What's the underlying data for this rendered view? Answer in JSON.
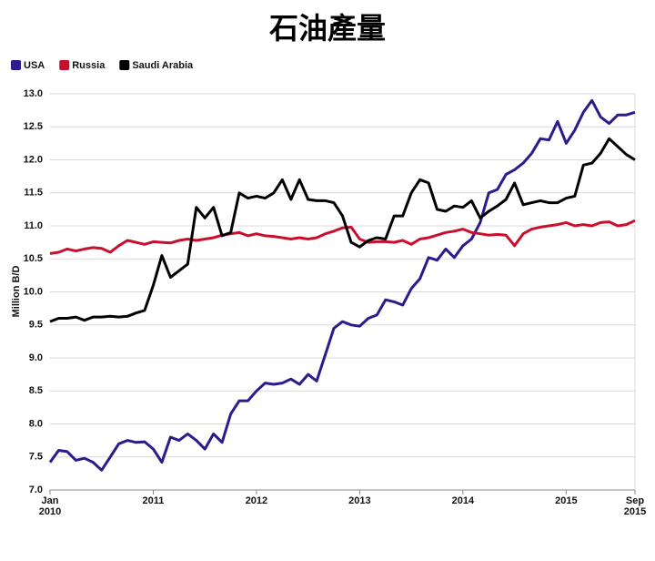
{
  "title": "石油產量",
  "chart_data": {
    "type": "line",
    "y_label": "Million B/D",
    "x": [
      "2010-01",
      "2010-02",
      "2010-03",
      "2010-04",
      "2010-05",
      "2010-06",
      "2010-07",
      "2010-08",
      "2010-09",
      "2010-10",
      "2010-11",
      "2010-12",
      "2011-01",
      "2011-02",
      "2011-03",
      "2011-04",
      "2011-05",
      "2011-06",
      "2011-07",
      "2011-08",
      "2011-09",
      "2011-10",
      "2011-11",
      "2011-12",
      "2012-01",
      "2012-02",
      "2012-03",
      "2012-04",
      "2012-05",
      "2012-06",
      "2012-07",
      "2012-08",
      "2012-09",
      "2012-10",
      "2012-11",
      "2012-12",
      "2013-01",
      "2013-02",
      "2013-03",
      "2013-04",
      "2013-05",
      "2013-06",
      "2013-07",
      "2013-08",
      "2013-09",
      "2013-10",
      "2013-11",
      "2013-12",
      "2014-01",
      "2014-02",
      "2014-03",
      "2014-04",
      "2014-05",
      "2014-06",
      "2014-07",
      "2014-08",
      "2014-09",
      "2014-10",
      "2014-11",
      "2014-12",
      "2015-01",
      "2015-02",
      "2015-03",
      "2015-04",
      "2015-05",
      "2015-06",
      "2015-07",
      "2015-08",
      "2015-09"
    ],
    "xlim": [
      "2010-01",
      "2015-09"
    ],
    "xticks": [
      {
        "value": "2010-01",
        "label": "Jan\n2010"
      },
      {
        "value": "2011-01",
        "label": "2011"
      },
      {
        "value": "2012-01",
        "label": "2012"
      },
      {
        "value": "2013-01",
        "label": "2013"
      },
      {
        "value": "2014-01",
        "label": "2014"
      },
      {
        "value": "2015-01",
        "label": "2015"
      },
      {
        "value": "2015-09",
        "label": "Sep\n2015"
      }
    ],
    "ylim": [
      7,
      13
    ],
    "yticks": [
      {
        "value": 7,
        "label": "7.0"
      },
      {
        "value": 7.5,
        "label": "7.5"
      },
      {
        "value": 8,
        "label": "8.0"
      },
      {
        "value": 8.5,
        "label": "8.5"
      },
      {
        "value": 9,
        "label": "9.0"
      },
      {
        "value": 9.5,
        "label": "9.5"
      },
      {
        "value": 10,
        "label": "10.0"
      },
      {
        "value": 10.5,
        "label": "10.5"
      },
      {
        "value": 11,
        "label": "11.0"
      },
      {
        "value": 11.5,
        "label": "11.5"
      },
      {
        "value": 12,
        "label": "12.0"
      },
      {
        "value": 12.5,
        "label": "12.5"
      },
      {
        "value": 13,
        "label": "13.0"
      }
    ],
    "grid": true,
    "series": [
      {
        "name": "USA",
        "color": "#2e1a8c",
        "values": [
          7.42,
          7.6,
          7.58,
          7.45,
          7.48,
          7.42,
          7.3,
          7.5,
          7.7,
          7.75,
          7.72,
          7.73,
          7.62,
          7.42,
          7.8,
          7.75,
          7.85,
          7.75,
          7.62,
          7.85,
          7.72,
          8.15,
          8.35,
          8.35,
          8.5,
          8.62,
          8.6,
          8.62,
          8.68,
          8.6,
          8.75,
          8.65,
          9.05,
          9.45,
          9.55,
          9.5,
          9.48,
          9.6,
          9.65,
          9.88,
          9.85,
          9.8,
          10.05,
          10.2,
          10.52,
          10.48,
          10.65,
          10.52,
          10.7,
          10.8,
          11.05,
          11.5,
          11.55,
          11.78,
          11.85,
          11.95,
          12.1,
          12.32,
          12.3,
          12.58,
          12.25,
          12.45,
          12.72,
          12.9,
          12.65,
          12.55,
          12.68,
          12.68,
          12.72
        ]
      },
      {
        "name": "Russia",
        "color": "#c8102e",
        "values": [
          10.58,
          10.6,
          10.65,
          10.62,
          10.65,
          10.67,
          10.66,
          10.6,
          10.7,
          10.78,
          10.75,
          10.72,
          10.76,
          10.75,
          10.74,
          10.78,
          10.8,
          10.78,
          10.8,
          10.82,
          10.86,
          10.88,
          10.9,
          10.85,
          10.88,
          10.85,
          10.84,
          10.82,
          10.8,
          10.82,
          10.8,
          10.82,
          10.88,
          10.92,
          10.97,
          10.98,
          10.8,
          10.75,
          10.76,
          10.76,
          10.75,
          10.78,
          10.72,
          10.8,
          10.82,
          10.86,
          10.9,
          10.92,
          10.95,
          10.9,
          10.88,
          10.86,
          10.87,
          10.86,
          10.7,
          10.88,
          10.95,
          10.98,
          11.0,
          11.02,
          11.05,
          11.0,
          11.02,
          11.0,
          11.05,
          11.06,
          11.0,
          11.02,
          11.08
        ]
      },
      {
        "name": "Saudi Arabia",
        "color": "#000000",
        "values": [
          9.55,
          9.6,
          9.6,
          9.62,
          9.57,
          9.62,
          9.62,
          9.63,
          9.62,
          9.63,
          9.68,
          9.72,
          10.1,
          10.55,
          10.22,
          10.32,
          10.42,
          11.28,
          11.12,
          11.28,
          10.85,
          10.9,
          11.5,
          11.42,
          11.45,
          11.42,
          11.5,
          11.7,
          11.4,
          11.7,
          11.4,
          11.38,
          11.38,
          11.35,
          11.15,
          10.75,
          10.68,
          10.78,
          10.82,
          10.8,
          11.15,
          11.15,
          11.5,
          11.7,
          11.65,
          11.25,
          11.22,
          11.3,
          11.28,
          11.38,
          11.12,
          11.22,
          11.3,
          11.4,
          11.65,
          11.32,
          11.35,
          11.38,
          11.35,
          11.35,
          11.42,
          11.45,
          11.92,
          11.95,
          12.1,
          12.32,
          12.2,
          12.08,
          12.0
        ]
      }
    ]
  }
}
